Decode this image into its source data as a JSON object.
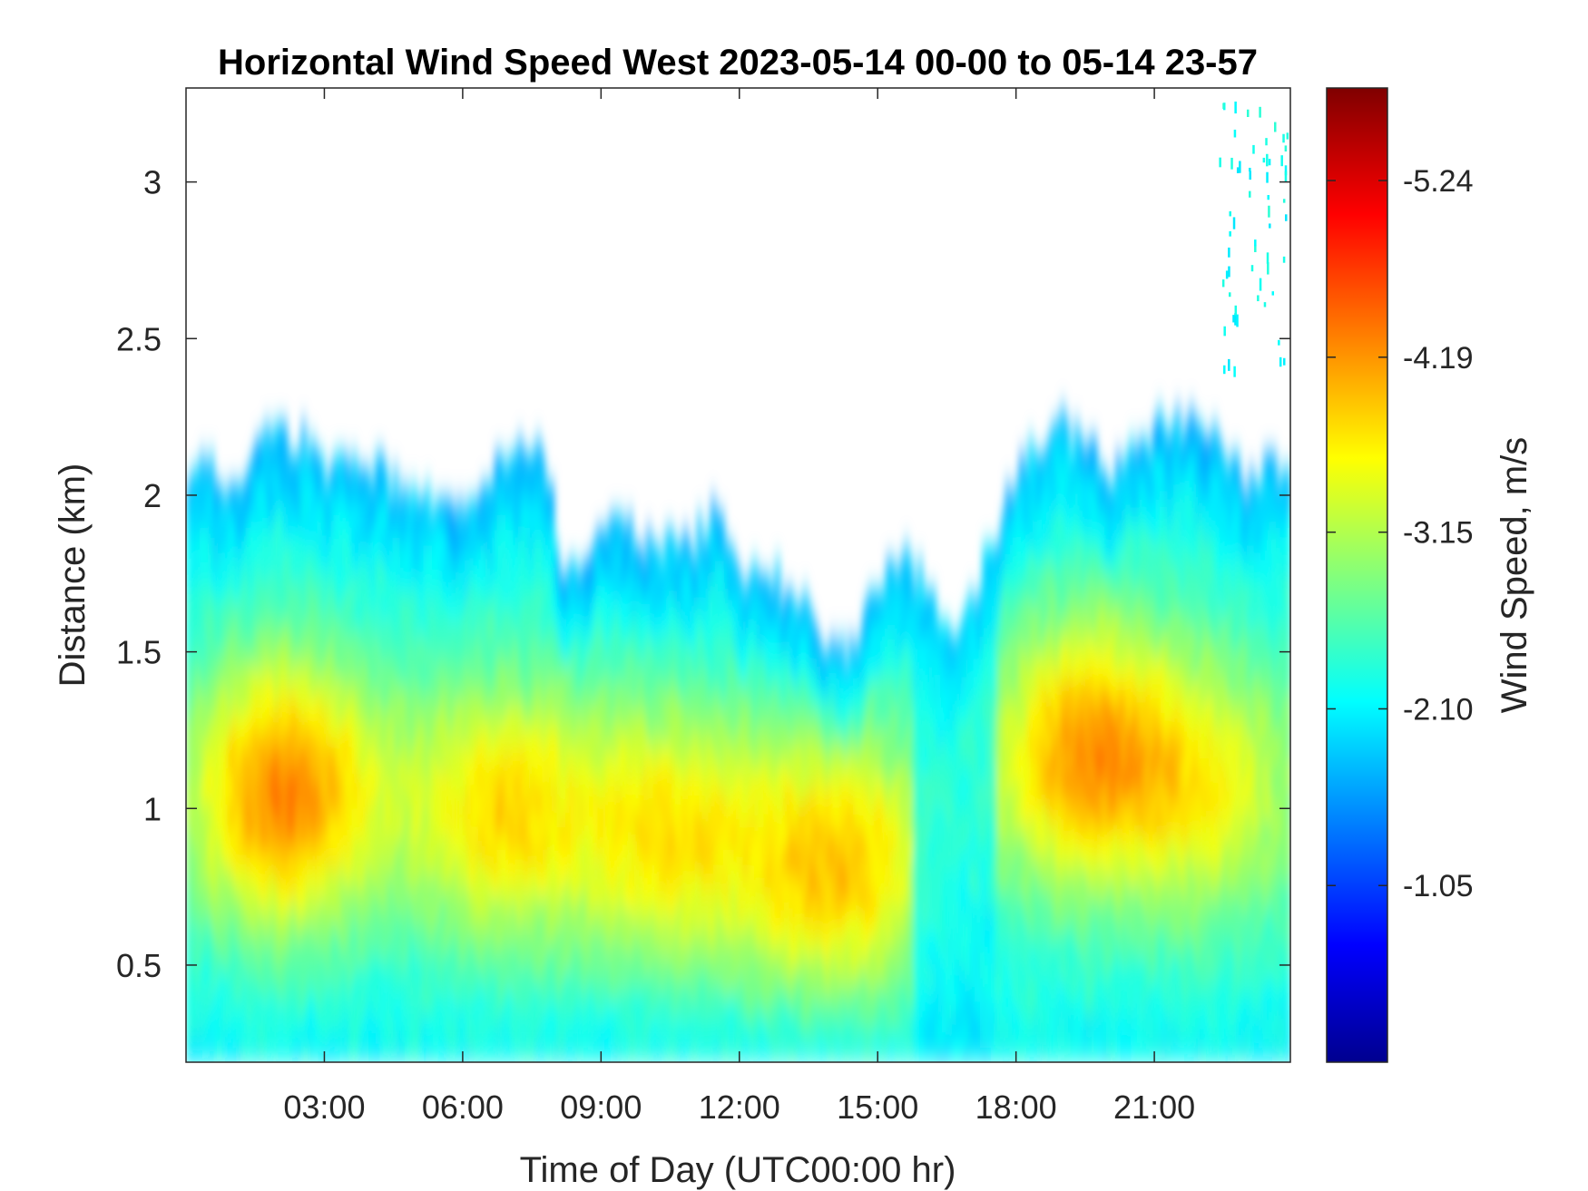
{
  "chart_data": {
    "type": "heatmap",
    "title": "Horizontal Wind Speed West 2023-05-14 00-00 to 05-14 23-57",
    "xlabel": "Time of Day (UTC00:00 hr)",
    "ylabel": "Distance (km)",
    "colorbar_label": "Wind Speed, m/s",
    "x_ticks": [
      {
        "value": 3,
        "label": "03:00"
      },
      {
        "value": 6,
        "label": "06:00"
      },
      {
        "value": 9,
        "label": "09:00"
      },
      {
        "value": 12,
        "label": "12:00"
      },
      {
        "value": 15,
        "label": "15:00"
      },
      {
        "value": 18,
        "label": "18:00"
      },
      {
        "value": 21,
        "label": "21:00"
      }
    ],
    "y_ticks": [
      {
        "value": 0.5,
        "label": "0.5"
      },
      {
        "value": 1,
        "label": "1"
      },
      {
        "value": 1.5,
        "label": "1.5"
      },
      {
        "value": 2,
        "label": "2"
      },
      {
        "value": 2.5,
        "label": "2.5"
      },
      {
        "value": 3,
        "label": "3"
      }
    ],
    "colorbar_ticks": [
      {
        "value": -1.05,
        "label": "-1.05"
      },
      {
        "value": -2.1,
        "label": "-2.10"
      },
      {
        "value": -3.15,
        "label": "-3.15"
      },
      {
        "value": -4.19,
        "label": "-4.19"
      },
      {
        "value": -5.24,
        "label": "-5.24"
      }
    ],
    "xlim": [
      0,
      23.95
    ],
    "ylim": [
      0.19,
      3.3
    ],
    "clim": [
      0,
      -5.79
    ],
    "colormap": "jet",
    "colormap_colors": [
      "#00008f",
      "#0000ff",
      "#00ffff",
      "#ffff00",
      "#ff0000",
      "#800000"
    ],
    "grid": false,
    "echo_top_profile": {
      "x": [
        0,
        1,
        2,
        2.5,
        3,
        4,
        5,
        6,
        7,
        7.8,
        8.2,
        9,
        10,
        11,
        11.5,
        12,
        13,
        13.7,
        14.3,
        15,
        15.5,
        16,
        16.5,
        17.2,
        18,
        19,
        20,
        21,
        22,
        23,
        23.95
      ],
      "y": [
        2.1,
        2.05,
        2.2,
        2.18,
        2.1,
        2.08,
        2.02,
        1.97,
        2.12,
        2.15,
        1.7,
        1.9,
        1.85,
        1.85,
        1.95,
        1.78,
        1.72,
        1.58,
        1.5,
        1.72,
        1.82,
        1.75,
        1.55,
        1.72,
        2.05,
        2.25,
        2.05,
        2.2,
        2.25,
        2.05,
        2.1
      ]
    },
    "cores": [
      {
        "x": 2.1,
        "y": 1.05,
        "value": -4.3
      },
      {
        "x": 6.8,
        "y": 1.0,
        "value": -3.7
      },
      {
        "x": 10.5,
        "y": 0.92,
        "value": -3.6
      },
      {
        "x": 14.2,
        "y": 0.82,
        "value": -3.9
      },
      {
        "x": 19.5,
        "y": 1.18,
        "value": -4.1
      },
      {
        "x": 22.5,
        "y": 1.05,
        "value": -3.3
      }
    ]
  }
}
